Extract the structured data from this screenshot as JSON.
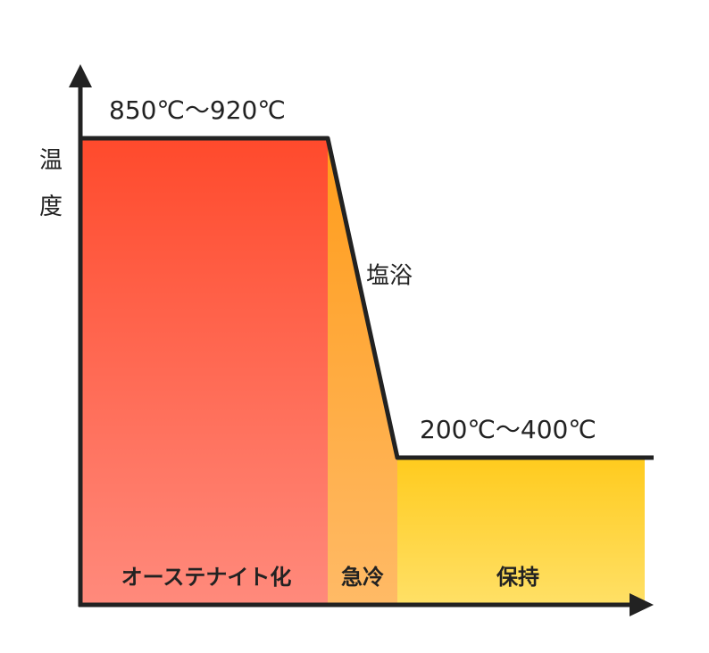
{
  "axis": {
    "y_label": "温度"
  },
  "labels": {
    "high_temp": "850℃〜920℃",
    "bath": "塩浴",
    "low_temp": "200℃〜400℃"
  },
  "stages": [
    "オーステナイト化",
    "急冷",
    "保持"
  ]
}
